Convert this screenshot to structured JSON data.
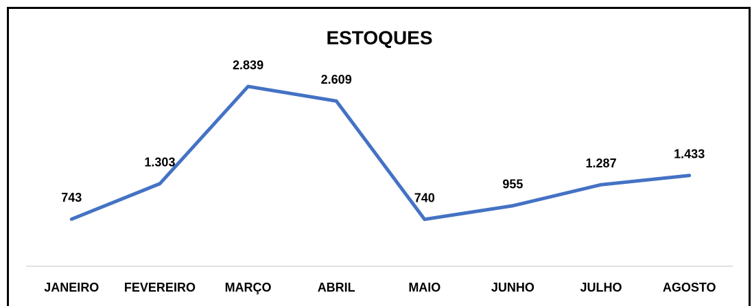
{
  "chart_data": {
    "type": "line",
    "title": "ESTOQUES",
    "categories": [
      "JANEIRO",
      "FEVEREIRO",
      "MARÇO",
      "ABRIL",
      "MAIO",
      "JUNHO",
      "JULHO",
      "AGOSTO"
    ],
    "series": [
      {
        "name": "ESTOQUES",
        "color": "#4472c4",
        "values": [
          743,
          1303,
          2839,
          2609,
          740,
          955,
          1287,
          1433
        ],
        "value_labels": [
          "743",
          "1.303",
          "2.839",
          "2.609",
          "740",
          "955",
          "1.287",
          "1.433"
        ]
      }
    ]
  }
}
